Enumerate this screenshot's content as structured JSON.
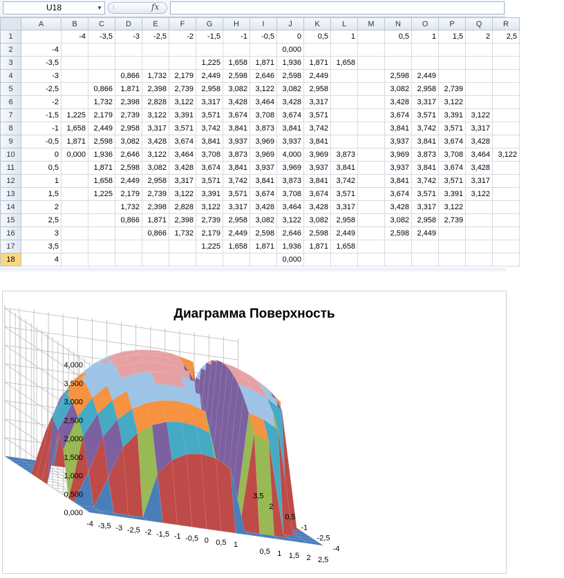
{
  "formula_bar": {
    "name_box": "U18",
    "fx_label": "fx",
    "formula": ""
  },
  "sheet": {
    "col_headers": [
      "A",
      "B",
      "C",
      "D",
      "E",
      "F",
      "G",
      "H",
      "I",
      "J",
      "K",
      "L",
      "M",
      "N",
      "O",
      "P",
      "Q",
      "R"
    ],
    "row_headers": [
      "1",
      "2",
      "3",
      "4",
      "5",
      "6",
      "7",
      "8",
      "9",
      "10",
      "11",
      "12",
      "13",
      "14",
      "15",
      "16",
      "17",
      "18"
    ],
    "selected_row": "18",
    "cells": [
      [
        "",
        "-4",
        "-3,5",
        "-3",
        "-2,5",
        "-2",
        "-1,5",
        "-1",
        "-0,5",
        "0",
        "0,5",
        "1",
        "",
        "0,5",
        "1",
        "1,5",
        "2",
        "2,5"
      ],
      [
        "-4",
        "",
        "",
        "",
        "",
        "",
        "",
        "",
        "",
        "0,000",
        "",
        "",
        "",
        "",
        "",
        "",
        "",
        ""
      ],
      [
        "-3,5",
        "",
        "",
        "",
        "",
        "",
        "1,225",
        "1,658",
        "1,871",
        "1,936",
        "1,871",
        "1,658",
        "",
        "",
        "",
        "",
        "",
        ""
      ],
      [
        "-3",
        "",
        "",
        "0,866",
        "1,732",
        "2,179",
        "2,449",
        "2,598",
        "2,646",
        "2,598",
        "2,449",
        "",
        "",
        "2,598",
        "2,449",
        "",
        "",
        ""
      ],
      [
        "-2,5",
        "",
        "0,866",
        "1,871",
        "2,398",
        "2,739",
        "2,958",
        "3,082",
        "3,122",
        "3,082",
        "2,958",
        "",
        "",
        "3,082",
        "2,958",
        "2,739",
        "",
        ""
      ],
      [
        "-2",
        "",
        "1,732",
        "2,398",
        "2,828",
        "3,122",
        "3,317",
        "3,428",
        "3,464",
        "3,428",
        "3,317",
        "",
        "",
        "3,428",
        "3,317",
        "3,122",
        "",
        ""
      ],
      [
        "-1,5",
        "1,225",
        "2,179",
        "2,739",
        "3,122",
        "3,391",
        "3,571",
        "3,674",
        "3,708",
        "3,674",
        "3,571",
        "",
        "",
        "3,674",
        "3,571",
        "3,391",
        "3,122",
        ""
      ],
      [
        "-1",
        "1,658",
        "2,449",
        "2,958",
        "3,317",
        "3,571",
        "3,742",
        "3,841",
        "3,873",
        "3,841",
        "3,742",
        "",
        "",
        "3,841",
        "3,742",
        "3,571",
        "3,317",
        ""
      ],
      [
        "-0,5",
        "1,871",
        "2,598",
        "3,082",
        "3,428",
        "3,674",
        "3,841",
        "3,937",
        "3,969",
        "3,937",
        "3,841",
        "",
        "",
        "3,937",
        "3,841",
        "3,674",
        "3,428",
        ""
      ],
      [
        "0",
        "0,000",
        "1,936",
        "2,646",
        "3,122",
        "3,464",
        "3,708",
        "3,873",
        "3,969",
        "4,000",
        "3,969",
        "3,873",
        "",
        "3,969",
        "3,873",
        "3,708",
        "3,464",
        "3,122"
      ],
      [
        "0,5",
        "",
        "1,871",
        "2,598",
        "3,082",
        "3,428",
        "3,674",
        "3,841",
        "3,937",
        "3,969",
        "3,937",
        "3,841",
        "",
        "3,937",
        "3,841",
        "3,674",
        "3,428",
        ""
      ],
      [
        "1",
        "",
        "1,658",
        "2,449",
        "2,958",
        "3,317",
        "3,571",
        "3,742",
        "3,841",
        "3,873",
        "3,841",
        "3,742",
        "",
        "3,841",
        "3,742",
        "3,571",
        "3,317",
        ""
      ],
      [
        "1,5",
        "",
        "1,225",
        "2,179",
        "2,739",
        "3,122",
        "3,391",
        "3,571",
        "3,674",
        "3,708",
        "3,674",
        "3,571",
        "",
        "3,674",
        "3,571",
        "3,391",
        "3,122",
        ""
      ],
      [
        "2",
        "",
        "",
        "1,732",
        "2,398",
        "2,828",
        "3,122",
        "3,317",
        "3,428",
        "3,464",
        "3,428",
        "3,317",
        "",
        "3,428",
        "3,317",
        "3,122",
        "",
        ""
      ],
      [
        "2,5",
        "",
        "",
        "0,866",
        "1,871",
        "2,398",
        "2,739",
        "2,958",
        "3,082",
        "3,122",
        "3,082",
        "2,958",
        "",
        "3,082",
        "2,958",
        "2,739",
        "",
        ""
      ],
      [
        "3",
        "",
        "",
        "",
        "0,866",
        "1,732",
        "2,179",
        "2,449",
        "2,598",
        "2,646",
        "2,598",
        "2,449",
        "",
        "2,598",
        "2,449",
        "",
        "",
        ""
      ],
      [
        "3,5",
        "",
        "",
        "",
        "",
        "",
        "1,225",
        "1,658",
        "1,871",
        "1,936",
        "1,871",
        "1,658",
        "",
        "",
        "",
        "",
        "",
        ""
      ],
      [
        "4",
        "",
        "",
        "",
        "",
        "",
        "",
        "",
        "",
        "0,000",
        "",
        "",
        "",
        "",
        "",
        "",
        "",
        ""
      ]
    ]
  },
  "chart_data": {
    "type": "surface",
    "title": "Диаграмма Поверхность",
    "x_categories": [
      "-4",
      "-3,5",
      "-3",
      "-2,5",
      "-2",
      "-1,5",
      "-1",
      "-0,5",
      "0",
      "0,5",
      "1",
      "",
      "0,5",
      "1",
      "1,5",
      "2",
      "2,5"
    ],
    "y_categories": [
      "-4",
      "-3,5",
      "-3",
      "-2,5",
      "-2",
      "-1,5",
      "-1",
      "-0,5",
      "0",
      "0,5",
      "1",
      "1,5",
      "2",
      "2,5",
      "3",
      "3,5",
      "4"
    ],
    "z_tick_labels": [
      "0,000",
      "0,500",
      "1,000",
      "1,500",
      "2,000",
      "2,500",
      "3,000",
      "3,500",
      "4,000"
    ],
    "z_range": [
      0,
      4
    ],
    "x_axis_tick_labels": [
      "-4",
      "-3,5",
      "-3",
      "-2,5",
      "-2",
      "-1,5",
      "-1",
      "-0,5",
      "0",
      "0,5",
      "1",
      "0,5",
      "1",
      "1,5",
      "2",
      "2,5"
    ],
    "depth_axis_tick_labels": [
      "-4",
      "-2,5",
      "-1",
      "0,5",
      "2",
      "3,5"
    ],
    "band_colors": [
      "#4a7ebb",
      "#be4b48",
      "#98b954",
      "#7d60a0",
      "#46aac5",
      "#f69240",
      "#9dc3e6",
      "#e6a0a2"
    ],
    "background_grid": true,
    "legend": "none"
  }
}
